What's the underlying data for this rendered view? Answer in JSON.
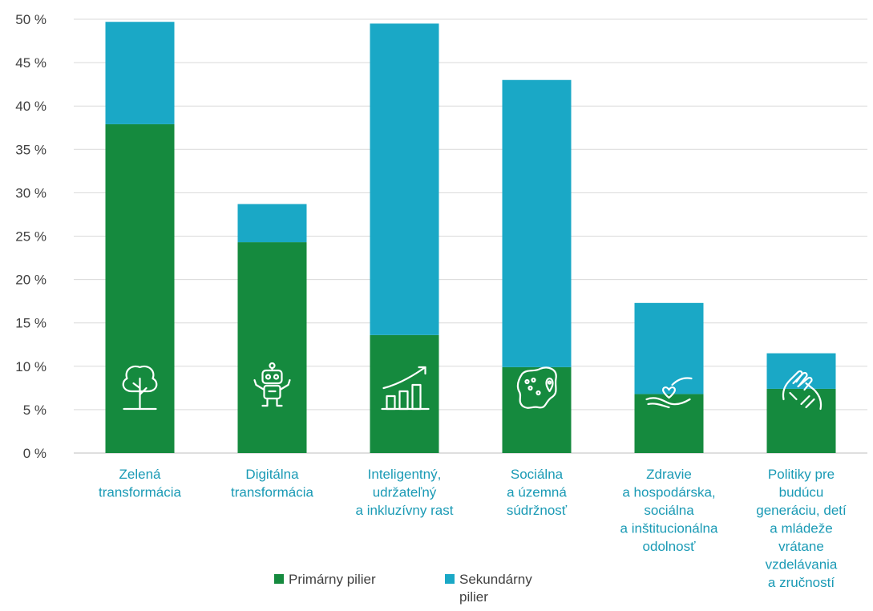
{
  "chart_data": {
    "type": "bar",
    "stacked": true,
    "categories": [
      [
        "Zelená",
        "transformácia"
      ],
      [
        "Digitálna",
        "transformácia"
      ],
      [
        "Inteligentný,",
        "udržateľný",
        "a inkluzívny rast"
      ],
      [
        "Sociálna",
        "a územná",
        "súdržnosť"
      ],
      [
        "Zdravie",
        "a hospodárska,",
        "sociálna",
        "a inštitucionálna",
        "odolnosť"
      ],
      [
        "Politiky pre",
        "budúcu",
        "generáciu, detí",
        "a mládeže",
        "vrátane",
        "vzdelávania",
        "a zručností"
      ]
    ],
    "category_icons": [
      "tree-icon",
      "robot-icon",
      "growth-chart-icon",
      "map-pin-icon",
      "caring-hands-heart-icon",
      "helping-hands-icon"
    ],
    "series": [
      {
        "name": "Primárny pilier",
        "color": "#158a3e",
        "values": [
          37.9,
          24.3,
          13.6,
          9.9,
          6.8,
          7.4
        ]
      },
      {
        "name": "Sekundárny pilier",
        "color": "#1aa8c6",
        "values": [
          11.8,
          4.4,
          35.9,
          33.1,
          10.5,
          4.1
        ]
      }
    ],
    "ylim": [
      0,
      50
    ],
    "yticks": [
      "0 %",
      "5 %",
      "10 %",
      "15 %",
      "20 %",
      "25 %",
      "30 %",
      "35 %",
      "40 %",
      "45 %",
      "50 %"
    ],
    "grid": true,
    "legend_position": "bottom"
  },
  "legend": {
    "primary": "Primárny pilier",
    "secondary": [
      "Sekundárny",
      "pilier"
    ]
  }
}
